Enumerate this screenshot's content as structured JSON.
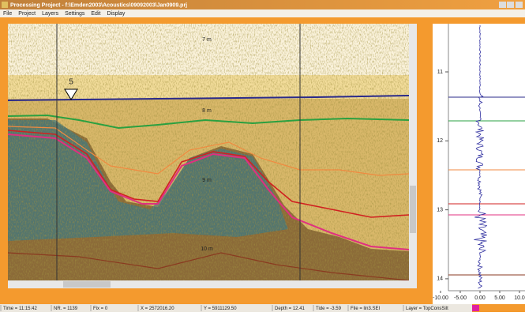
{
  "window": {
    "title": "Processing   Project - f:\\Emden2003\\Acoustics\\09092003\\Jan0909.prj",
    "menu": [
      "File",
      "Project",
      "Layers",
      "Settings",
      "Edit",
      "Display"
    ]
  },
  "echogram": {
    "depth_labels": [
      "7 m",
      "8 m",
      "9 m",
      "10 m"
    ],
    "marker": "5"
  },
  "trace_panel": {
    "yticks": [
      11,
      12,
      13,
      14
    ],
    "xticks": [
      {
        "value": -10,
        "label": "-10.00"
      },
      {
        "value": -5,
        "label": "-5.00"
      },
      {
        "value": 0,
        "label": "0.00"
      },
      {
        "value": 5,
        "label": "5.00"
      },
      {
        "value": 10,
        "label": "10.0"
      }
    ]
  },
  "status_bar": [
    "Time = 11:15:42",
    "NR. = 1139",
    "Fix = 0",
    "X = 2572016.20",
    "Y = 5911129.50",
    "Depth = 12.41",
    "Tide = -3.59",
    "File = lin3.SEI",
    "Layer = TopConsSilt"
  ]
}
